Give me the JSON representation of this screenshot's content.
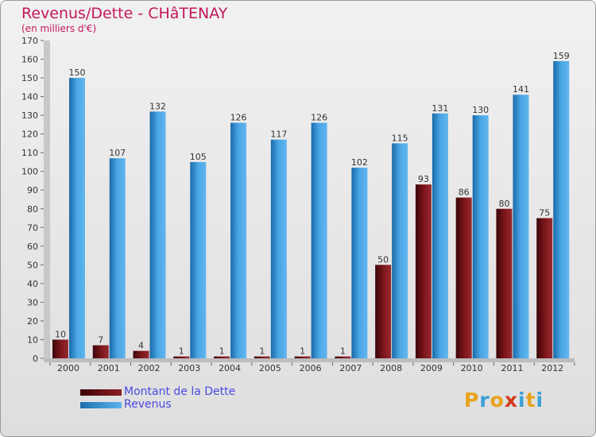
{
  "header": {
    "title": "Revenus/Dette - CHâTENAY",
    "unit_label": "(en milliers d'€)"
  },
  "chart_data": {
    "type": "bar",
    "categories": [
      "2000",
      "2001",
      "2002",
      "2003",
      "2004",
      "2005",
      "2006",
      "2007",
      "2008",
      "2009",
      "2010",
      "2011",
      "2012"
    ],
    "ylim": [
      0,
      170
    ],
    "y_ticks": [
      0,
      10,
      20,
      30,
      40,
      50,
      60,
      70,
      80,
      90,
      100,
      110,
      120,
      130,
      140,
      150,
      160,
      170
    ],
    "grid": false,
    "legend_position": "bottom-left",
    "series": [
      {
        "name": "Montant de la Dette",
        "color": "#7a1418",
        "values": [
          10,
          7,
          4,
          1,
          1,
          1,
          1,
          1,
          50,
          93,
          86,
          80,
          75
        ]
      },
      {
        "name": "Revenus",
        "color": "#3d97dc",
        "values": [
          150,
          107,
          132,
          105,
          126,
          117,
          126,
          102,
          115,
          131,
          130,
          141,
          159
        ]
      }
    ]
  },
  "logo": {
    "text": "Proxiti",
    "colors": [
      "#e8a21a",
      "#3aa0d8",
      "#e8a21a",
      "#d23a1a",
      "#3aa0d8",
      "#e8a21a",
      "#3aa0d8"
    ]
  }
}
